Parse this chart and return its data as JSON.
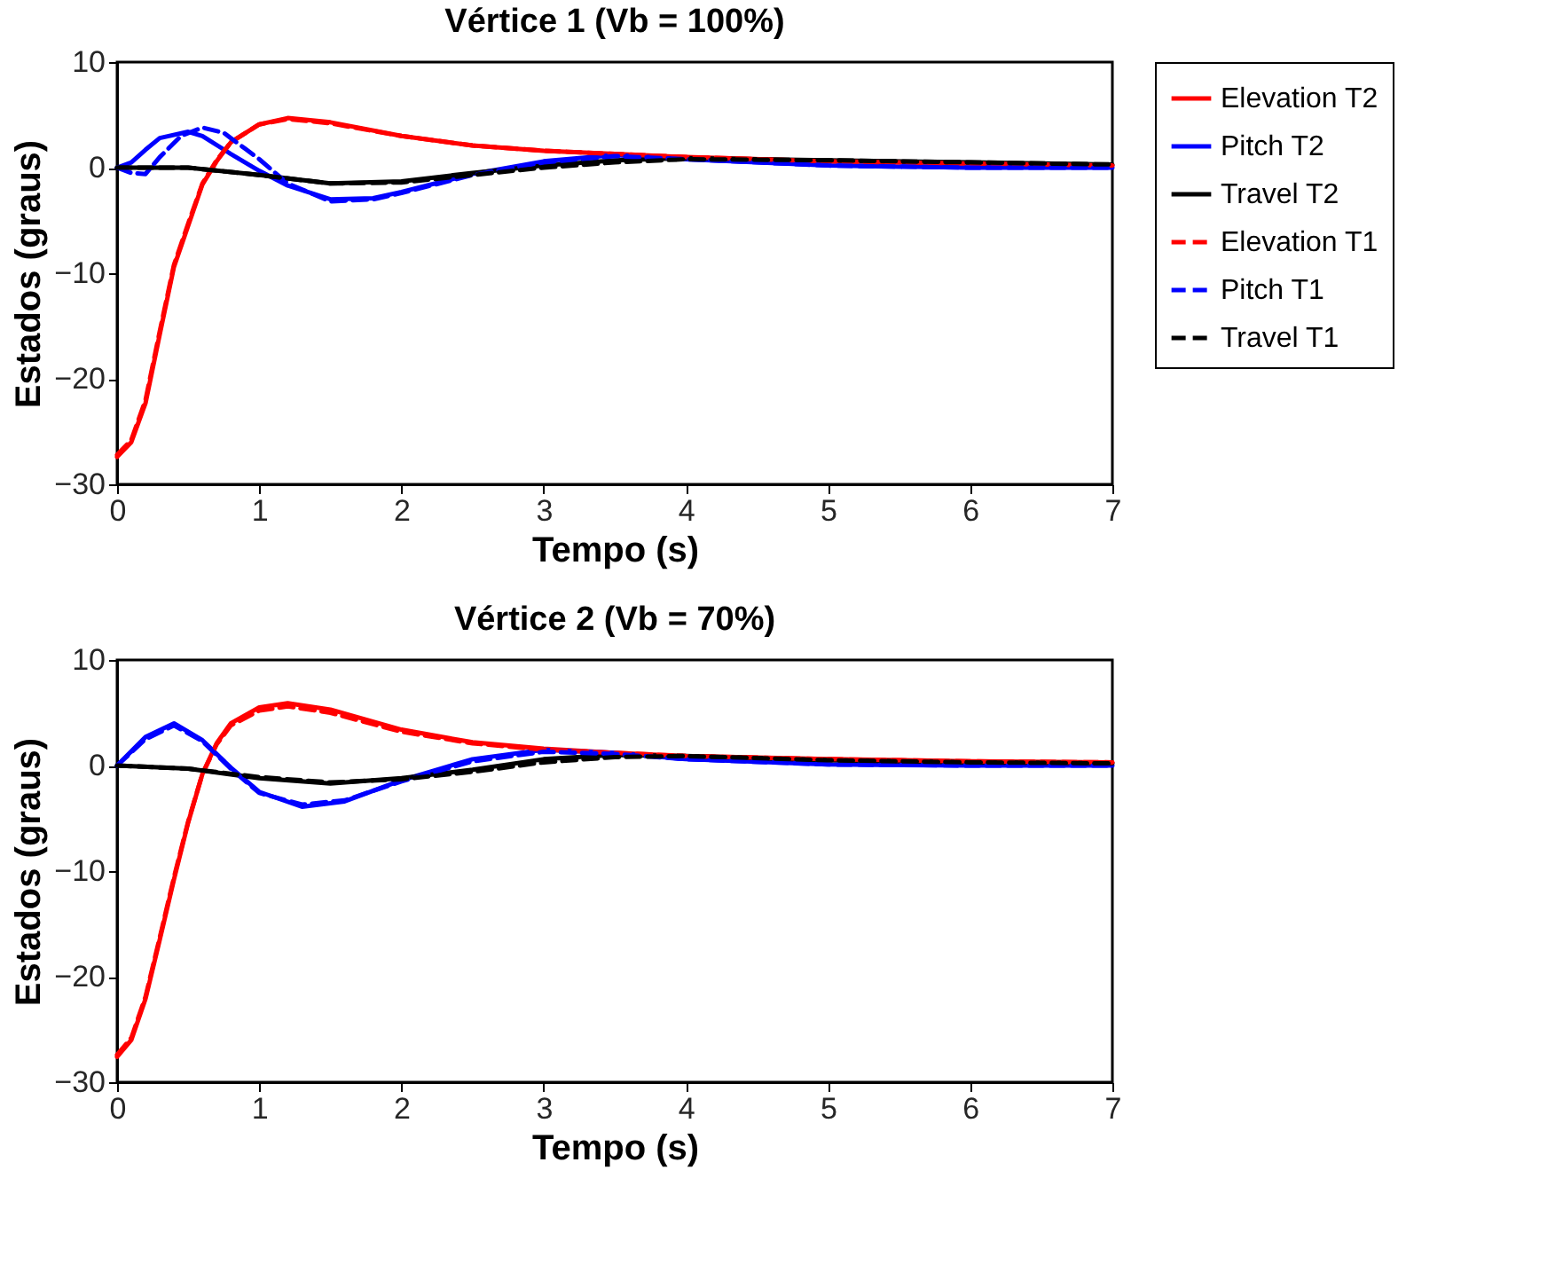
{
  "chart_data": [
    {
      "type": "line",
      "title": "Vértice 1 (Vb = 100%)",
      "xlabel": "Tempo (s)",
      "ylabel": "Estados (graus)",
      "xlim": [
        0,
        7
      ],
      "ylim": [
        -30,
        10
      ],
      "xticks": [
        0,
        1,
        2,
        3,
        4,
        5,
        6,
        7
      ],
      "yticks": [
        -30,
        -20,
        -10,
        0,
        10
      ],
      "grid": false,
      "legend": "right",
      "series": [
        {
          "name": "Elevation T2",
          "color": "#ff0000",
          "line_style": "solid",
          "x": [
            0,
            0.1,
            0.2,
            0.3,
            0.4,
            0.5,
            0.6,
            0.7,
            0.8,
            1.0,
            1.2,
            1.5,
            2,
            2.5,
            3,
            3.5,
            4,
            5,
            6,
            7
          ],
          "values": [
            -27.4,
            -26,
            -22.3,
            -15.8,
            -9.4,
            -5.5,
            -1.6,
            0.6,
            2.4,
            4.1,
            4.7,
            4.3,
            3.0,
            2.1,
            1.6,
            1.3,
            1.0,
            0.6,
            0.4,
            0.2
          ]
        },
        {
          "name": "Pitch T2",
          "color": "#0000ff",
          "line_style": "solid",
          "x": [
            0,
            0.1,
            0.2,
            0.3,
            0.5,
            0.6,
            0.8,
            1.0,
            1.2,
            1.5,
            1.8,
            2.0,
            2.5,
            3,
            3.5,
            4,
            5,
            6,
            7
          ],
          "values": [
            0,
            0.5,
            1.7,
            2.8,
            3.4,
            3.0,
            1.3,
            -0.3,
            -1.7,
            -3.0,
            -2.9,
            -2.3,
            -0.6,
            0.6,
            1.2,
            0.8,
            0.2,
            0,
            0
          ]
        },
        {
          "name": "Travel T2",
          "color": "#000000",
          "line_style": "solid",
          "x": [
            0,
            0.5,
            1.0,
            1.5,
            2,
            2.5,
            3,
            3.5,
            4,
            5,
            6,
            7
          ],
          "values": [
            0,
            0,
            -0.7,
            -1.5,
            -1.3,
            -0.5,
            0.2,
            0.7,
            0.9,
            0.7,
            0.5,
            0.3
          ]
        },
        {
          "name": "Elevation T1",
          "color": "#ff0000",
          "line_style": "dashed",
          "x": [
            0,
            0.1,
            0.2,
            0.3,
            0.4,
            0.5,
            0.6,
            0.7,
            0.8,
            1.0,
            1.2,
            1.5,
            2,
            2.5,
            3,
            3.5,
            4,
            5,
            6,
            7
          ],
          "values": [
            -27.2,
            -25.8,
            -22.0,
            -15.5,
            -9.2,
            -5.3,
            -1.5,
            0.7,
            2.4,
            4.1,
            4.6,
            4.2,
            3.0,
            2.1,
            1.6,
            1.3,
            1.0,
            0.6,
            0.4,
            0.2
          ]
        },
        {
          "name": "Pitch T1",
          "color": "#0000ff",
          "line_style": "dashed",
          "x": [
            0,
            0.1,
            0.2,
            0.3,
            0.45,
            0.6,
            0.75,
            0.9,
            1.0,
            1.2,
            1.5,
            1.8,
            2.0,
            2.5,
            3,
            3.5,
            4,
            5,
            6,
            7
          ],
          "values": [
            0,
            -0.5,
            -0.6,
            1.0,
            3.0,
            3.8,
            3.3,
            1.8,
            0.8,
            -1.5,
            -3.2,
            -3.0,
            -2.4,
            -0.7,
            0.5,
            1.1,
            0.8,
            0.2,
            0,
            0
          ]
        },
        {
          "name": "Travel T1",
          "color": "#000000",
          "line_style": "dashed",
          "x": [
            0,
            0.5,
            1.0,
            1.5,
            2,
            2.5,
            3,
            3.5,
            4,
            5,
            6,
            7
          ],
          "values": [
            0,
            0,
            -0.7,
            -1.5,
            -1.4,
            -0.7,
            0,
            0.5,
            0.8,
            0.7,
            0.5,
            0.3
          ]
        }
      ]
    },
    {
      "type": "line",
      "title": "Vértice 2 (Vb = 70%)",
      "xlabel": "Tempo (s)",
      "ylabel": "Estados (graus)",
      "xlim": [
        0,
        7
      ],
      "ylim": [
        -30,
        10
      ],
      "xticks": [
        0,
        1,
        2,
        3,
        4,
        5,
        6,
        7
      ],
      "yticks": [
        -30,
        -20,
        -10,
        0,
        10
      ],
      "grid": false,
      "legend": "right",
      "series": [
        {
          "name": "Elevation T2",
          "color": "#ff0000",
          "line_style": "solid",
          "x": [
            0,
            0.1,
            0.2,
            0.3,
            0.4,
            0.5,
            0.6,
            0.7,
            0.8,
            1.0,
            1.2,
            1.5,
            2,
            2.5,
            3,
            3.5,
            4,
            5,
            6,
            7
          ],
          "values": [
            -27.6,
            -26,
            -22.1,
            -16.5,
            -10.8,
            -5.4,
            -0.8,
            2.1,
            4.0,
            5.5,
            5.9,
            5.3,
            3.4,
            2.2,
            1.6,
            1.2,
            0.9,
            0.6,
            0.4,
            0.3
          ]
        },
        {
          "name": "Pitch T2",
          "color": "#0000ff",
          "line_style": "solid",
          "x": [
            0,
            0.2,
            0.4,
            0.6,
            0.8,
            1.0,
            1.3,
            1.6,
            2,
            2.5,
            3,
            3.5,
            4,
            5,
            6,
            7
          ],
          "values": [
            0,
            2.7,
            4.0,
            2.4,
            -0.2,
            -2.5,
            -3.9,
            -3.4,
            -1.4,
            0.6,
            1.5,
            1.2,
            0.6,
            0.1,
            0,
            0
          ]
        },
        {
          "name": "Travel T2",
          "color": "#000000",
          "line_style": "solid",
          "x": [
            0,
            0.5,
            1.0,
            1.5,
            2,
            2.5,
            3,
            3.5,
            4,
            5,
            6,
            7
          ],
          "values": [
            0,
            -0.3,
            -1.2,
            -1.7,
            -1.2,
            -0.4,
            0.6,
            1.0,
            0.9,
            0.5,
            0.3,
            0.2
          ]
        },
        {
          "name": "Elevation T1",
          "color": "#ff0000",
          "line_style": "dashed",
          "x": [
            0,
            0.1,
            0.2,
            0.3,
            0.4,
            0.5,
            0.6,
            0.7,
            0.8,
            1.0,
            1.2,
            1.5,
            2,
            2.5,
            3,
            3.5,
            4,
            5,
            6,
            7
          ],
          "values": [
            -27.4,
            -25.8,
            -21.9,
            -16.3,
            -10.6,
            -5.3,
            -0.8,
            2.0,
            3.8,
            5.2,
            5.6,
            5.0,
            3.2,
            2.1,
            1.5,
            1.2,
            0.9,
            0.6,
            0.4,
            0.3
          ]
        },
        {
          "name": "Pitch T1",
          "color": "#0000ff",
          "line_style": "dashed",
          "x": [
            0,
            0.2,
            0.4,
            0.6,
            0.8,
            1.0,
            1.3,
            1.6,
            2,
            2.5,
            3,
            3.5,
            4,
            5,
            6,
            7
          ],
          "values": [
            0,
            2.5,
            3.8,
            2.3,
            -0.3,
            -2.6,
            -3.7,
            -3.3,
            -1.5,
            0.4,
            1.3,
            1.1,
            0.6,
            0.1,
            0,
            0
          ]
        },
        {
          "name": "Travel T1",
          "color": "#000000",
          "line_style": "dashed",
          "x": [
            0,
            0.5,
            1.0,
            1.5,
            2,
            2.5,
            3,
            3.5,
            4,
            5,
            6,
            7
          ],
          "values": [
            0,
            -0.3,
            -1.1,
            -1.6,
            -1.3,
            -0.6,
            0.3,
            0.8,
            0.9,
            0.5,
            0.3,
            0.2
          ]
        }
      ]
    }
  ]
}
